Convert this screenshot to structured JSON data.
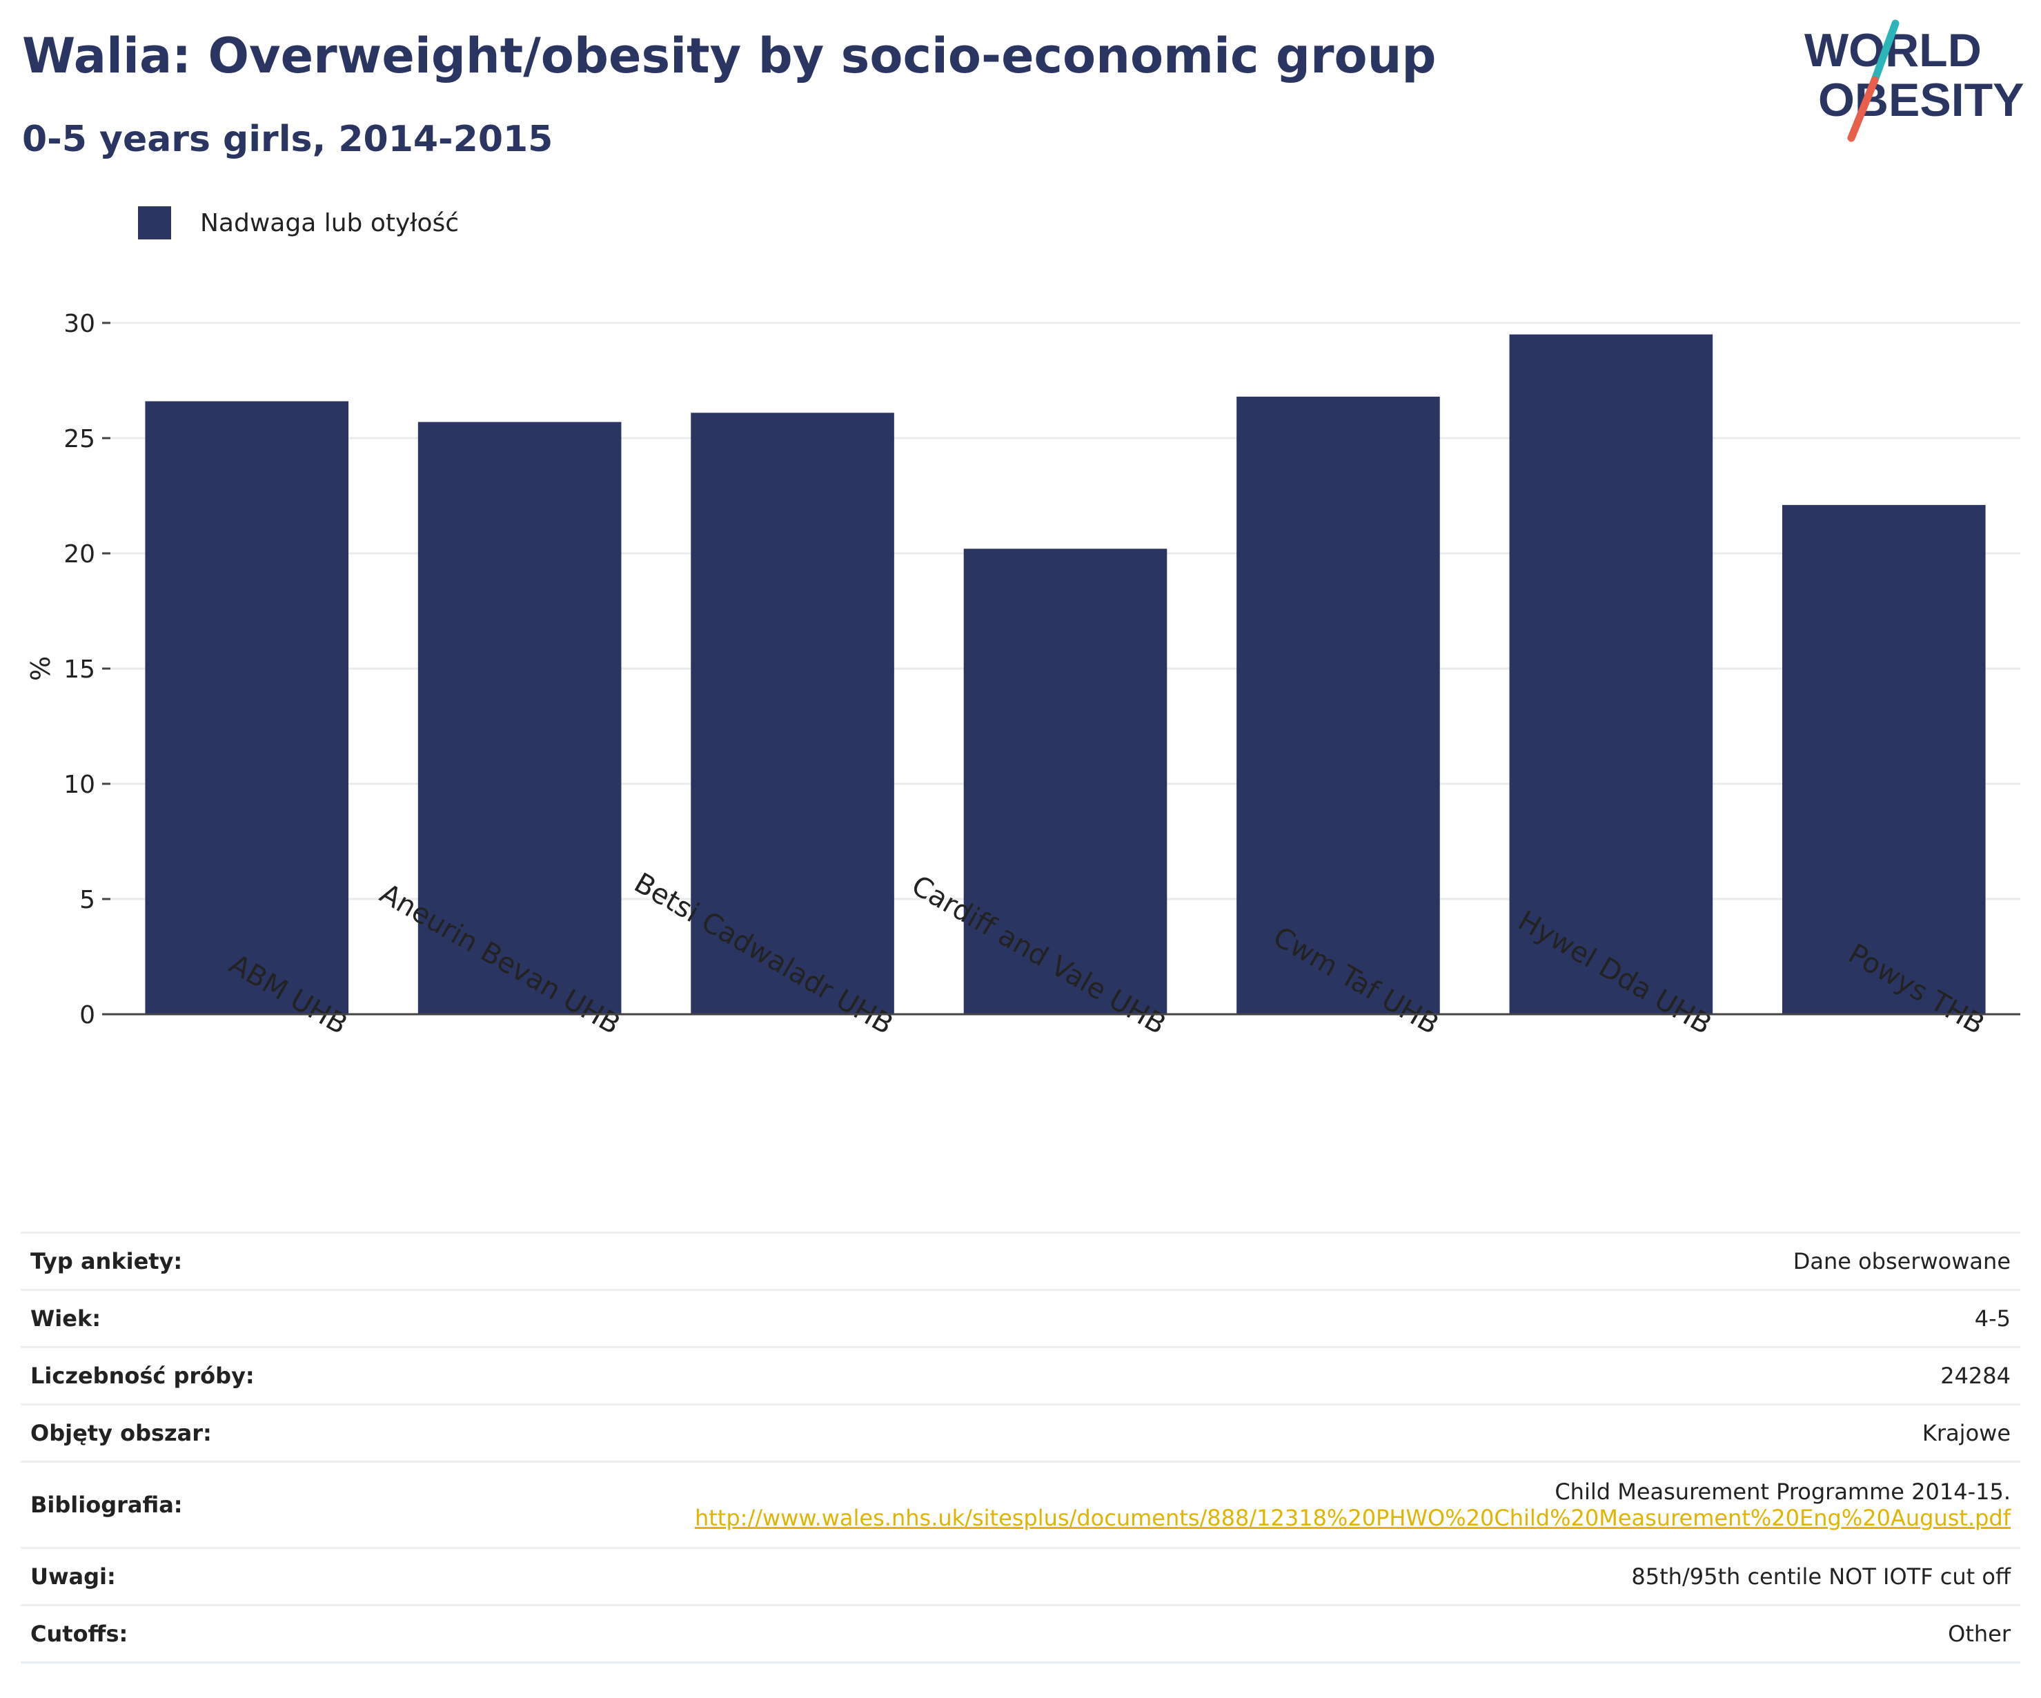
{
  "header": {
    "title": "Walia: Overweight/obesity by socio-economic group",
    "subtitle": "0-5 years girls, 2014-2015"
  },
  "logo": {
    "line1": "WORLD",
    "line2": "OBESITY",
    "color_text": "#2b3561",
    "color_slash_top": "#2bb5b8",
    "color_slash_bottom": "#e8604c"
  },
  "chart_data": {
    "type": "bar",
    "categories": [
      "ABM UHB",
      "Aneurin Bevan UHB",
      "Betsi Cadwaladr UHB",
      "Cardiff and Vale UHB",
      "Cwm Taf UHB",
      "Hywel Dda UHB",
      "Powys THB"
    ],
    "series": [
      {
        "name": "Nadwaga lub otyłość",
        "values": [
          26.6,
          25.7,
          26.1,
          20.2,
          26.8,
          29.5,
          22.1
        ],
        "color": "#2b3561"
      }
    ],
    "ylabel": "%",
    "ylim": [
      0,
      30
    ],
    "yticks": [
      0,
      5,
      10,
      15,
      20,
      25,
      30
    ],
    "grid": true,
    "legend_position": "top-left"
  },
  "info": [
    {
      "key": "Typ ankiety:",
      "value": "Dane obserwowane"
    },
    {
      "key": "Wiek:",
      "value": "4-5"
    },
    {
      "key": "Liczebność próby:",
      "value": "24284"
    },
    {
      "key": "Objęty obszar:",
      "value": "Krajowe"
    },
    {
      "key": "Bibliografia:",
      "value": "Child Measurement Programme 2014-15.",
      "link": "http://www.wales.nhs.uk/sitesplus/documents/888/12318%20PHWO%20Child%20Measurement%20Eng%20August.pdf"
    },
    {
      "key": "Uwagi:",
      "value": "85th/95th centile NOT IOTF cut off"
    },
    {
      "key": "Cutoffs:",
      "value": "Other"
    }
  ]
}
